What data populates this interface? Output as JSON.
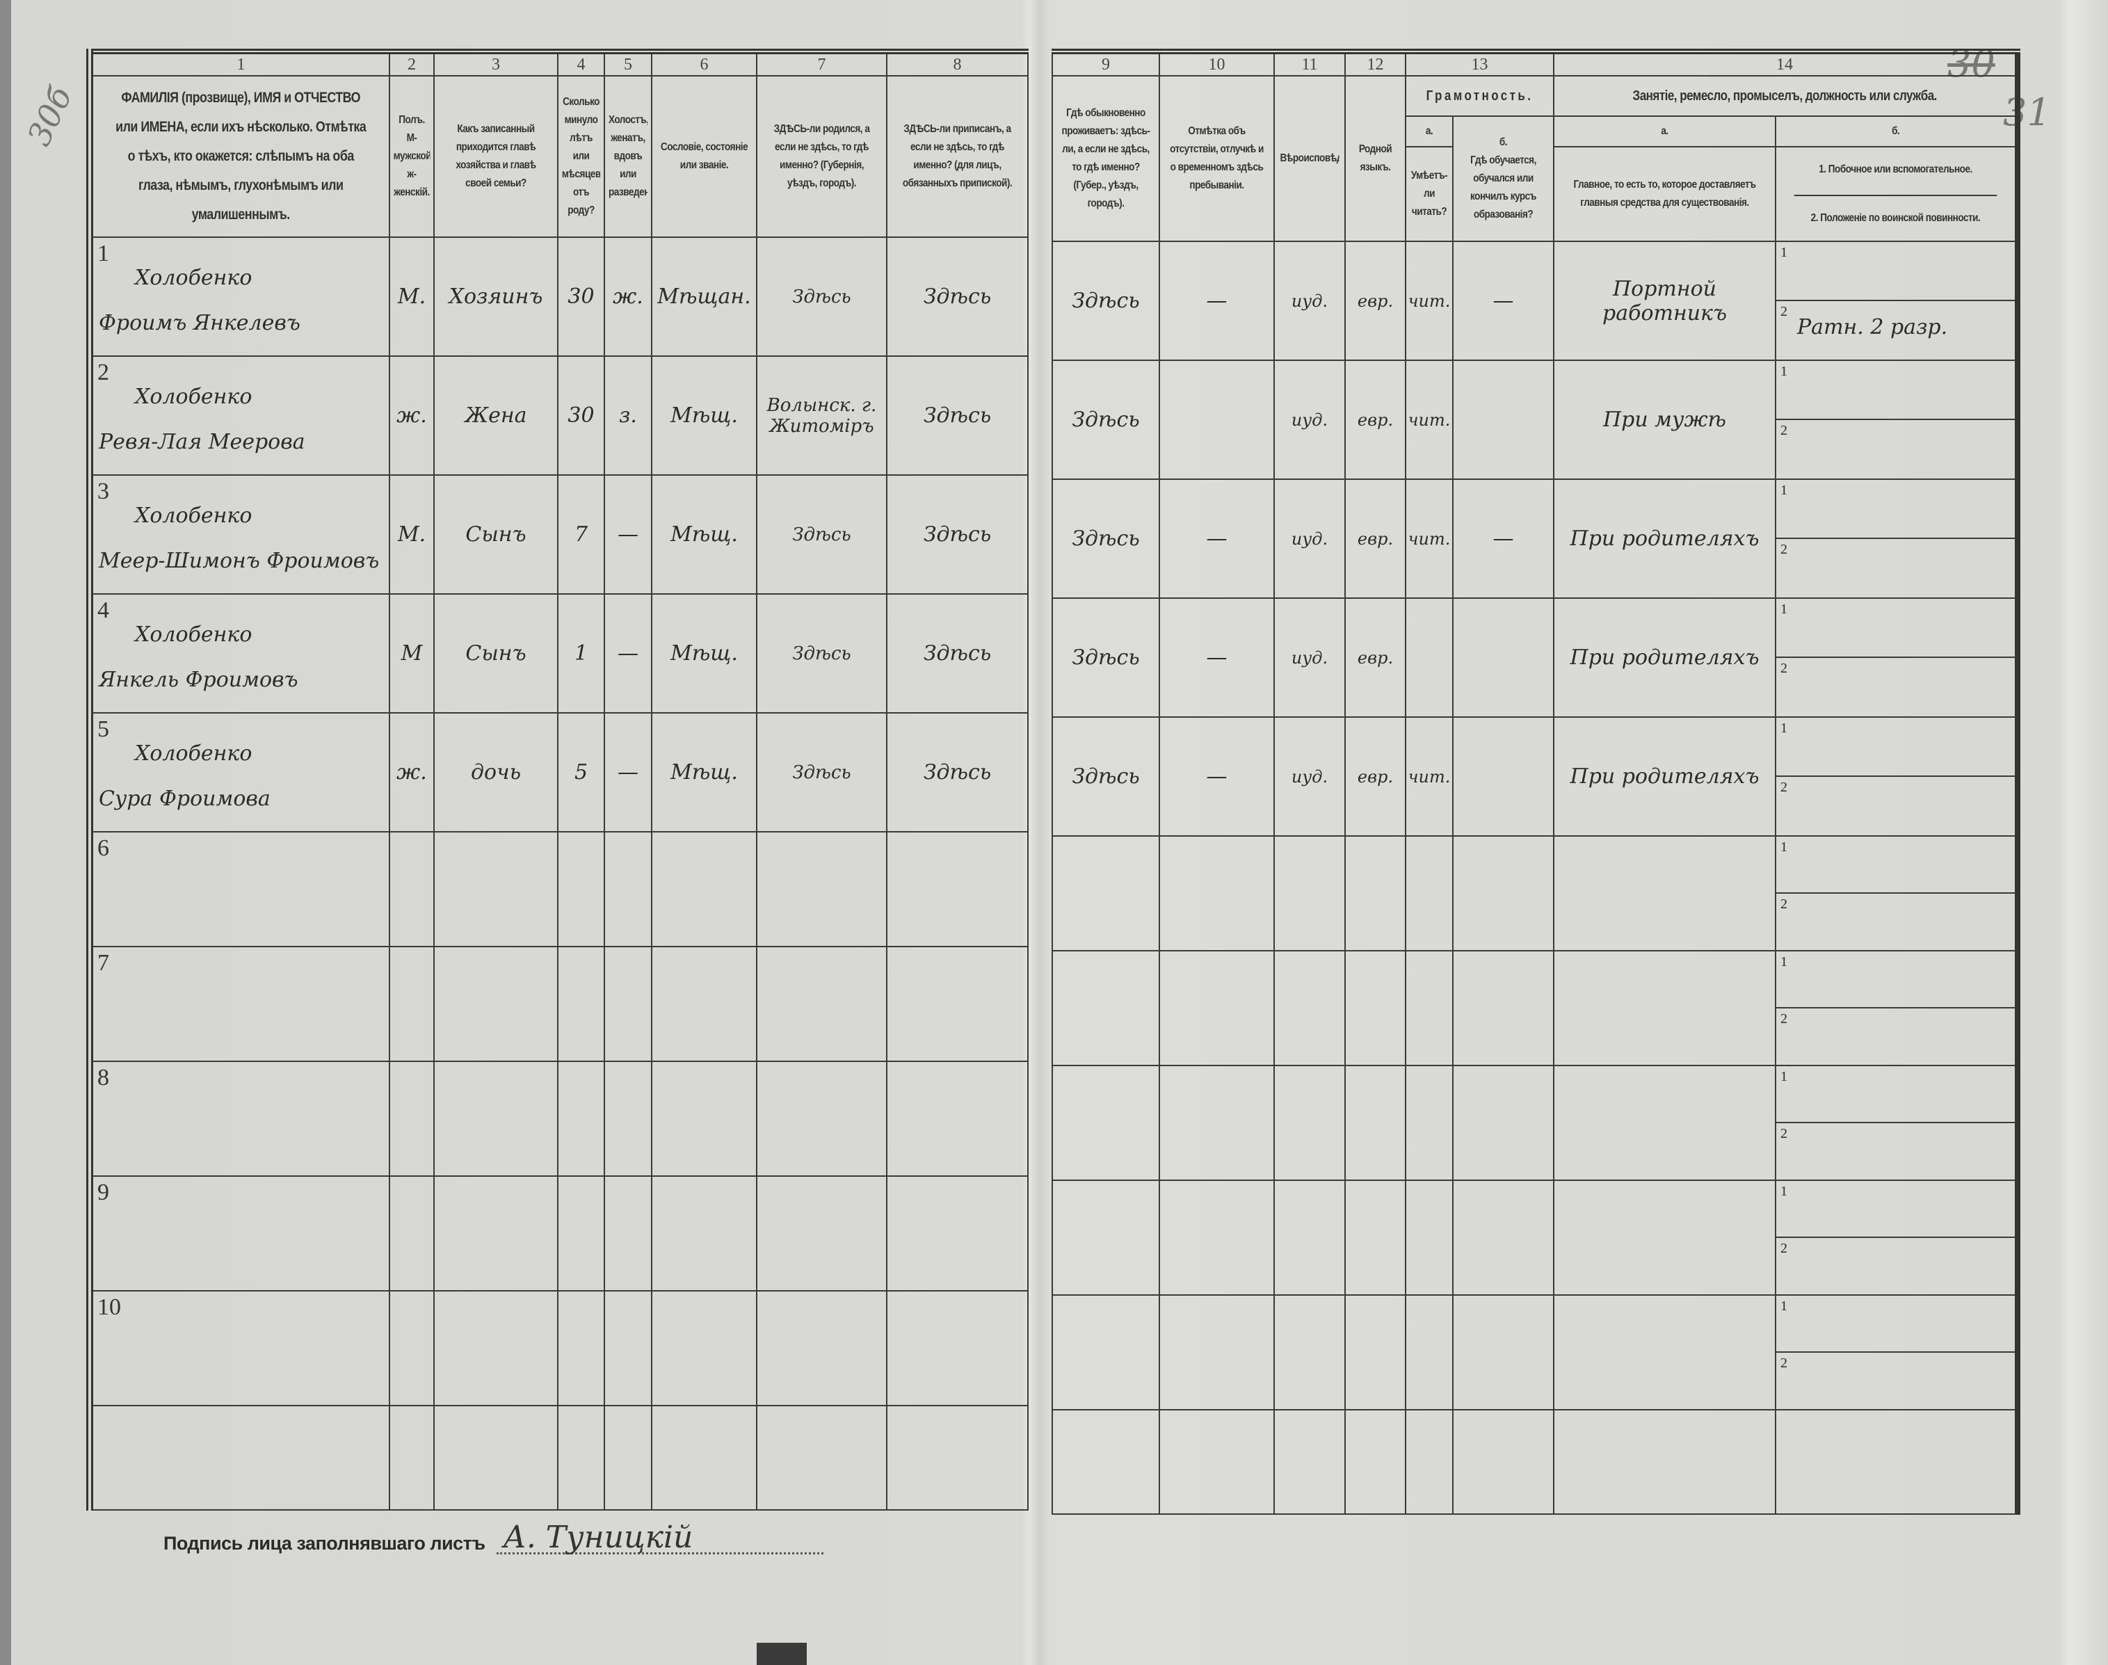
{
  "margin_notes": {
    "left": "30б",
    "right_crossed": "30",
    "right": "31"
  },
  "left_header": {
    "numbers": [
      "1",
      "2",
      "3",
      "4",
      "5",
      "6",
      "7",
      "8"
    ],
    "labels": [
      "ФАМИЛІЯ (прозвище), ИМЯ и ОТЧЕСТВО или ИМЕНА, если ихъ нѣсколько. Отмѣтка о тѣхъ, кто окажется: слѣпымъ на оба глаза, нѣмымъ, глухонѣмымъ или умалишеннымъ.",
      "Полъ. М-мужской. ж-женскій.",
      "Какъ записанный приходится главѣ хозяйства и главѣ своей семьи?",
      "Сколько минуло лѣтъ или мѣсяцевъ отъ роду?",
      "Холостъ, женатъ, вдовъ или разведенъ.",
      "Сословіе, состояніе или званіе.",
      "ЗДѢСЬ-ли родился, а если не здѣсь, то гдѣ именно? (Губернія, уѣздъ, городъ).",
      "ЗДѢСЬ-ли приписанъ, а если не здѣсь, то гдѣ именно? (для лицъ, обязанныхъ припиской)."
    ]
  },
  "right_header": {
    "numbers": [
      "9",
      "10",
      "11",
      "12",
      "13",
      "14"
    ],
    "col9": "Гдѣ обыкновенно проживаетъ: здѣсь-ли, а если не здѣсь, то гдѣ именно? (Губер., уѣздъ, городъ).",
    "col10": "Отмѣтка объ отсутствіи, отлучкѣ и о временномъ здѣсь пребываніи.",
    "col11": "Вѣроисповѣданіе.",
    "col12": "Родной языкъ.",
    "col13": "Грамотность.",
    "col13a": "а.",
    "col13a_text": "Умѣетъ-ли читать?",
    "col13b": "б.",
    "col13b_text": "Гдѣ обучается, обучался или кончилъ курсъ образованія?",
    "col14": "Занятіе, ремесло, промыселъ, должность или служба.",
    "col14a": "а.",
    "col14a_text": "Главное, то есть то, которое доставляетъ главныя средства для существованія.",
    "col14b": "б.",
    "col14b_1": "1. Побочное или вспомогательное.",
    "col14b_2": "2. Положеніе по воинской повинности."
  },
  "rows": [
    {
      "num": "1",
      "surname": "Холобенко",
      "given": "Фроимъ Янкелевъ",
      "sex": "М.",
      "relation": "Хозяинъ",
      "age": "30",
      "marital": "ж.",
      "estate": "Мѣщан.",
      "born": "Здѣсь",
      "registered": "Здѣсь",
      "residence": "Здѣсь",
      "absence": "—",
      "religion": "иуд.",
      "language": "евр.",
      "reads": "чит.",
      "education": "—",
      "occupation": "Портной работникъ",
      "sub1_num": "1",
      "sub1": "",
      "sub2_num": "2",
      "sub2": "Ратн. 2 разр."
    },
    {
      "num": "2",
      "surname": "Холобенко",
      "given": "Ревя-Лая Меерова",
      "sex": "ж.",
      "relation": "Жена",
      "age": "30",
      "marital": "з.",
      "estate": "Мѣщ.",
      "born": "Волынск. г. Житоміръ",
      "registered": "Здѣсь",
      "residence": "Здѣсь",
      "absence": "",
      "religion": "иуд.",
      "language": "евр.",
      "reads": "чит.",
      "education": "",
      "occupation": "При мужѣ",
      "sub1_num": "1",
      "sub1": "",
      "sub2_num": "2",
      "sub2": ""
    },
    {
      "num": "3",
      "surname": "Холобенко",
      "given": "Меер-Шимонъ Фроимовъ",
      "sex": "М.",
      "relation": "Сынъ",
      "age": "7",
      "marital": "—",
      "estate": "Мѣщ.",
      "born": "Здѣсь",
      "registered": "Здѣсь",
      "residence": "Здѣсь",
      "absence": "—",
      "religion": "иуд.",
      "language": "евр.",
      "reads": "чит.",
      "education": "—",
      "occupation": "При родителяхъ",
      "sub1_num": "1",
      "sub1": "",
      "sub2_num": "2",
      "sub2": ""
    },
    {
      "num": "4",
      "surname": "Холобенко",
      "given": "Янкель Фроимовъ",
      "sex": "М",
      "relation": "Сынъ",
      "age": "1",
      "marital": "—",
      "estate": "Мѣщ.",
      "born": "Здѣсь",
      "registered": "Здѣсь",
      "residence": "Здѣсь",
      "absence": "—",
      "religion": "иуд.",
      "language": "евр.",
      "reads": "",
      "education": "",
      "occupation": "При родителяхъ",
      "sub1_num": "1",
      "sub1": "",
      "sub2_num": "2",
      "sub2": ""
    },
    {
      "num": "5",
      "surname": "Холобенко",
      "given": "Сура Фроимова",
      "sex": "ж.",
      "relation": "дочь",
      "age": "5",
      "marital": "—",
      "estate": "Мѣщ.",
      "born": "Здѣсь",
      "registered": "Здѣсь",
      "residence": "Здѣсь",
      "absence": "—",
      "religion": "иуд.",
      "language": "евр.",
      "reads": "чит.",
      "education": "",
      "occupation": "При родителяхъ",
      "sub1_num": "1",
      "sub1": "",
      "sub2_num": "2",
      "sub2": ""
    },
    {
      "num": "6",
      "sub1_num": "1",
      "sub2_num": "2"
    },
    {
      "num": "7",
      "sub1_num": "1",
      "sub2_num": "2"
    },
    {
      "num": "8",
      "sub1_num": "1",
      "sub2_num": "2"
    },
    {
      "num": "9",
      "sub1_num": "1",
      "sub2_num": "2"
    },
    {
      "num": "10",
      "sub1_num": "1",
      "sub2_num": "2"
    }
  ],
  "signature": {
    "label": "Подпись лица заполнявшаго листъ",
    "value": "А. Туницкій"
  }
}
